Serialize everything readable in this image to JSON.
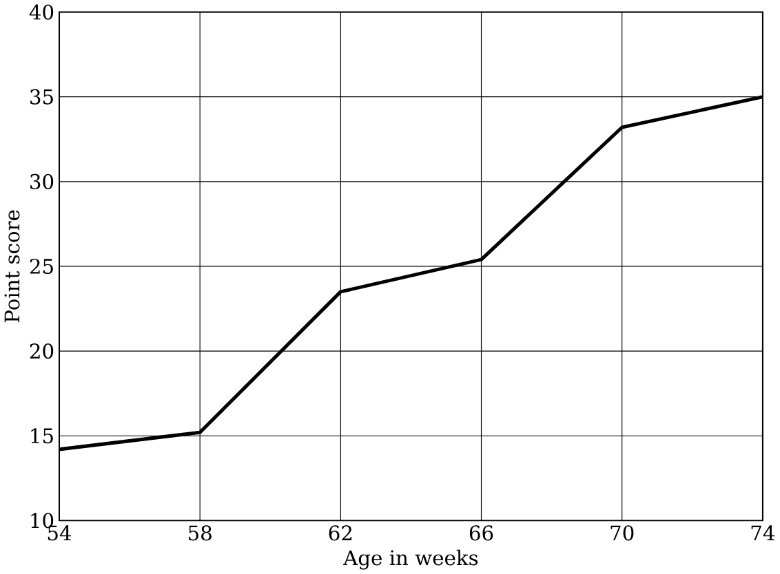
{
  "chart_data": {
    "type": "line",
    "xlabel": "Age in weeks",
    "ylabel": "Point score",
    "x": [
      54,
      58,
      62,
      66,
      70,
      74
    ],
    "series": [
      {
        "color": "#000000",
        "values": [
          14.2,
          15.2,
          23.5,
          25.4,
          33.2,
          35.0
        ]
      }
    ],
    "xlim": [
      54,
      74
    ],
    "xticks": [
      54,
      58,
      62,
      66,
      70,
      74
    ],
    "ylim": [
      10,
      40
    ],
    "yticks": [
      10,
      15,
      20,
      25,
      30,
      35,
      40
    ],
    "grid": true,
    "marker": "none",
    "line_style": "solid"
  }
}
